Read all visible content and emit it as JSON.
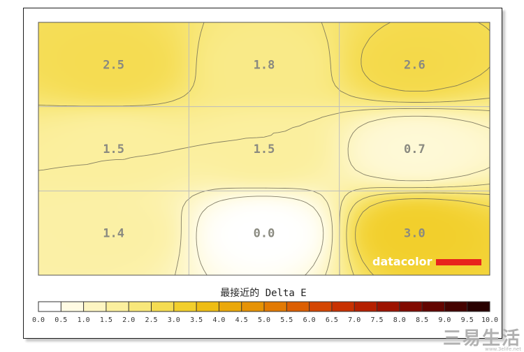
{
  "chart_data": {
    "type": "heatmap",
    "title": "最接近的 Delta E",
    "rows": 3,
    "cols": 3,
    "cells": [
      [
        2.5,
        1.8,
        2.6
      ],
      [
        1.5,
        1.5,
        0.7
      ],
      [
        1.4,
        0.0,
        3.0
      ]
    ],
    "cell_labels": [
      [
        "2.5",
        "1.8",
        "2.6"
      ],
      [
        "1.5",
        "1.5",
        "0.7"
      ],
      [
        "1.4",
        "0.0",
        "3.0"
      ]
    ],
    "colorbar": {
      "min": 0.0,
      "max": 10.0,
      "step": 0.5,
      "tick_labels": [
        "0.0",
        "0.5",
        "1.0",
        "1.5",
        "2.0",
        "2.5",
        "3.0",
        "3.5",
        "4.0",
        "4.5",
        "5.0",
        "5.5",
        "6.0",
        "6.5",
        "7.0",
        "7.5",
        "8.0",
        "8.5",
        "9.0",
        "9.5",
        "10.0"
      ],
      "colors": [
        "#ffffff",
        "#fffbe3",
        "#fdf5c2",
        "#fbef9e",
        "#f8e77a",
        "#f5dc52",
        "#f2cf2c",
        "#eebd14",
        "#eaa80a",
        "#e69305",
        "#e27a03",
        "#dc5f02",
        "#d44602",
        "#c83101",
        "#b52000",
        "#9d1300",
        "#810a00",
        "#630500",
        "#450300",
        "#280100",
        "#0d0000"
      ]
    },
    "contours": true,
    "grid": true,
    "logo": "datacolor",
    "logo_colors": {
      "text": "#ffffff",
      "bar": "#e8231c"
    }
  },
  "watermark": {
    "name": "三易生活",
    "url": "www.3elife.net"
  }
}
